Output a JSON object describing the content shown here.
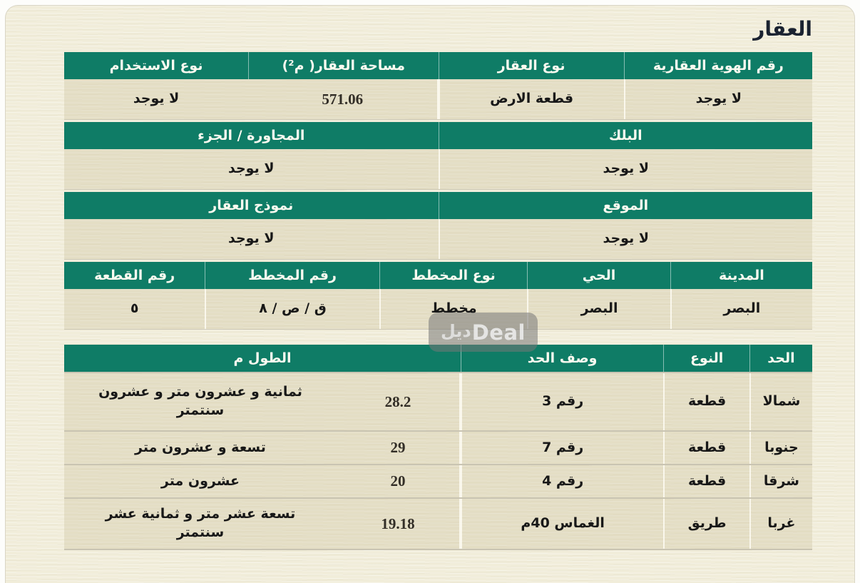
{
  "page": {
    "title": "العقار"
  },
  "watermark": {
    "arabic": "ديل",
    "latin": "Deal"
  },
  "colors": {
    "header_green": "#0f7c66",
    "page_bg": "#f1edda",
    "row_bg": "#e8e1ca",
    "text_dark": "#181818"
  },
  "property": {
    "section1": {
      "headers": [
        "رقم الهوية العقارية",
        "نوع العقار",
        "مساحة العقار( م²)",
        "نوع الاستخدام"
      ],
      "values": [
        "لا يوجد",
        "قطعة الارض",
        "571.06",
        "لا يوجد"
      ]
    },
    "section2": {
      "headers": [
        "البلك",
        "المجاورة / الجزء"
      ],
      "values": [
        "لا يوجد",
        "لا يوجد"
      ]
    },
    "section3": {
      "headers": [
        "الموقع",
        "نموذج العقار"
      ],
      "values": [
        "لا يوجد",
        "لا يوجد"
      ]
    },
    "section4": {
      "headers": [
        "المدينة",
        "الحي",
        "نوع المخطط",
        "رقم المخطط",
        "رقم القطعة"
      ],
      "values": [
        "البصر",
        "البصر",
        "مخطط",
        "ق / ص / ٨",
        "٥"
      ]
    }
  },
  "borders": {
    "headers": [
      "الحد",
      "النوع",
      "وصف الحد",
      "الطول م"
    ],
    "rows": [
      {
        "side": "شمالا",
        "type": "قطعة",
        "desc": "رقم 3",
        "len": "28.2",
        "len_text": "ثمانية و عشرون متر و عشرون سنتمتر"
      },
      {
        "side": "جنوبا",
        "type": "قطعة",
        "desc": "رقم 7",
        "len": "29",
        "len_text": "تسعة و عشرون متر"
      },
      {
        "side": "شرقا",
        "type": "قطعة",
        "desc": "رقم 4",
        "len": "20",
        "len_text": "عشرون متر"
      },
      {
        "side": "غربا",
        "type": "طريق",
        "desc": "الغماس 40م",
        "len": "19.18",
        "len_text": "تسعة عشر متر و ثمانية عشر سنتمتر"
      }
    ]
  }
}
